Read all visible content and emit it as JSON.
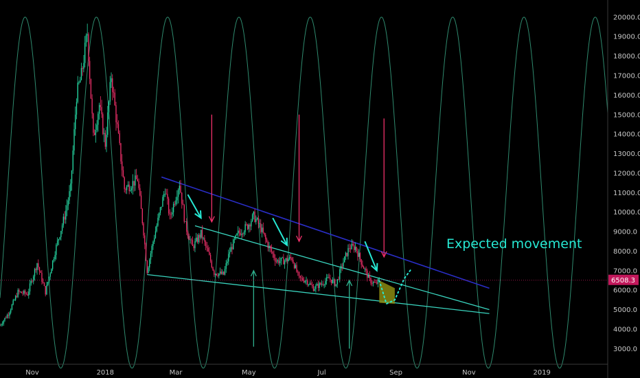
{
  "chart_data": {
    "type": "candlestick",
    "symbol_price_label": "6508.3",
    "current_price": 6508.3,
    "y_range": [
      2200,
      20700
    ],
    "x_range": [
      "2017-10-05",
      "2019-02-25"
    ],
    "y_ticks": [
      3000,
      4000,
      5000,
      6000,
      7000,
      8000,
      9000,
      10000,
      11000,
      12000,
      13000,
      14000,
      15000,
      16000,
      17000,
      18000,
      19000,
      20000
    ],
    "y_tick_labels": [
      "3000.0",
      "4000.0",
      "5000.0",
      "6000.0",
      "7000.0",
      "8000.0",
      "9000.0",
      "10000.0",
      "11000.0",
      "12000.0",
      "13000.0",
      "14000.0",
      "15000.0",
      "16000.0",
      "17000.0",
      "18000.0",
      "19000.0",
      "20000.0"
    ],
    "x_ticks": [
      {
        "date": "2017-11-01",
        "label": "Nov"
      },
      {
        "date": "2018-01-01",
        "label": "2018"
      },
      {
        "date": "2018-03-01",
        "label": "Mar"
      },
      {
        "date": "2018-05-01",
        "label": "May"
      },
      {
        "date": "2018-07-01",
        "label": "Jul"
      },
      {
        "date": "2018-09-01",
        "label": "Sep"
      },
      {
        "date": "2018-11-01",
        "label": "Nov"
      },
      {
        "date": "2019-01-01",
        "label": "2019"
      }
    ],
    "price_path": [
      [
        "2017-10-05",
        4200
      ],
      [
        "2017-10-12",
        4800
      ],
      [
        "2017-10-20",
        5900
      ],
      [
        "2017-10-28",
        5800
      ],
      [
        "2017-11-05",
        7400
      ],
      [
        "2017-11-12",
        5900
      ],
      [
        "2017-11-20",
        8000
      ],
      [
        "2017-11-28",
        9800
      ],
      [
        "2017-12-03",
        11200
      ],
      [
        "2017-12-08",
        16000
      ],
      [
        "2017-12-12",
        17000
      ],
      [
        "2017-12-17",
        19200
      ],
      [
        "2017-12-22",
        13800
      ],
      [
        "2017-12-27",
        15500
      ],
      [
        "2018-01-01",
        13500
      ],
      [
        "2018-01-06",
        17000
      ],
      [
        "2018-01-12",
        13800
      ],
      [
        "2018-01-17",
        11200
      ],
      [
        "2018-01-22",
        11400
      ],
      [
        "2018-01-28",
        11700
      ],
      [
        "2018-02-02",
        9000
      ],
      [
        "2018-02-05",
        7000
      ],
      [
        "2018-02-10",
        8500
      ],
      [
        "2018-02-20",
        11200
      ],
      [
        "2018-02-24",
        9700
      ],
      [
        "2018-03-04",
        11500
      ],
      [
        "2018-03-09",
        9300
      ],
      [
        "2018-03-15",
        8200
      ],
      [
        "2018-03-22",
        8900
      ],
      [
        "2018-03-28",
        7900
      ],
      [
        "2018-04-02",
        6900
      ],
      [
        "2018-04-10",
        6800
      ],
      [
        "2018-04-15",
        8000
      ],
      [
        "2018-04-22",
        8900
      ],
      [
        "2018-04-30",
        9300
      ],
      [
        "2018-05-05",
        9800
      ],
      [
        "2018-05-10",
        9300
      ],
      [
        "2018-05-17",
        8300
      ],
      [
        "2018-05-24",
        7500
      ],
      [
        "2018-05-30",
        7500
      ],
      [
        "2018-06-06",
        7650
      ],
      [
        "2018-06-12",
        6600
      ],
      [
        "2018-06-18",
        6500
      ],
      [
        "2018-06-24",
        6100
      ],
      [
        "2018-06-30",
        6300
      ],
      [
        "2018-07-07",
        6600
      ],
      [
        "2018-07-13",
        6300
      ],
      [
        "2018-07-18",
        7300
      ],
      [
        "2018-07-24",
        8200
      ],
      [
        "2018-07-29",
        8200
      ],
      [
        "2018-08-04",
        7300
      ],
      [
        "2018-08-10",
        6500
      ],
      [
        "2018-08-15",
        6300
      ],
      [
        "2018-08-18",
        6500
      ]
    ],
    "projection_path": [
      [
        "2018-08-18",
        6500
      ],
      [
        "2018-08-24",
        5300
      ],
      [
        "2018-08-31",
        5500
      ],
      [
        "2018-09-08",
        6600
      ],
      [
        "2018-09-14",
        7100
      ]
    ],
    "trendlines": [
      {
        "role": "upper-resistance",
        "color": "#2a2ec8",
        "from": [
          "2018-02-17",
          11800
        ],
        "to": [
          "2018-11-18",
          6100
        ]
      },
      {
        "role": "inner-resistance",
        "color": "#3ad6c0",
        "from": [
          "2018-03-17",
          9300
        ],
        "to": [
          "2018-11-18",
          5000
        ]
      },
      {
        "role": "support",
        "color": "#3ad6c0",
        "from": [
          "2018-02-05",
          6800
        ],
        "to": [
          "2018-11-18",
          4800
        ]
      }
    ],
    "annotations": [
      {
        "text": "Expected movement",
        "color": "#27e8d3"
      }
    ],
    "arrows": [
      {
        "kind": "red-down",
        "from": [
          "2018-03-31",
          15000
        ],
        "to": [
          "2018-03-31",
          9500
        ]
      },
      {
        "kind": "red-down",
        "from": [
          "2018-06-12",
          15000
        ],
        "to": [
          "2018-06-12",
          8500
        ]
      },
      {
        "kind": "red-down",
        "from": [
          "2018-08-22",
          14800
        ],
        "to": [
          "2018-08-22",
          7700
        ]
      },
      {
        "kind": "cyan-diag",
        "from": [
          "2018-03-11",
          10900
        ],
        "to": [
          "2018-03-22",
          9700
        ]
      },
      {
        "kind": "cyan-diag",
        "from": [
          "2018-05-21",
          9700
        ],
        "to": [
          "2018-06-02",
          8300
        ]
      },
      {
        "kind": "cyan-diag",
        "from": [
          "2018-08-06",
          8500
        ],
        "to": [
          "2018-08-16",
          7000
        ]
      },
      {
        "kind": "teal-up",
        "from": [
          "2018-05-05",
          3100
        ],
        "to": [
          "2018-05-05",
          7000
        ]
      },
      {
        "kind": "teal-up",
        "from": [
          "2018-07-24",
          3000
        ],
        "to": [
          "2018-07-24",
          6500
        ]
      }
    ],
    "highlight_zone": {
      "color": "#8b8b12",
      "points": [
        [
          "2018-08-18",
          6500
        ],
        [
          "2018-08-31",
          6100
        ],
        [
          "2018-08-31",
          5300
        ],
        [
          "2018-08-18",
          5350
        ]
      ]
    },
    "cycle": {
      "color": "#2f8a6e",
      "low": 2000,
      "high": 20000,
      "peaks": [
        "2017-10-26",
        "2017-12-24",
        "2018-02-21",
        "2018-04-22",
        "2018-06-20",
        "2018-08-19",
        "2018-10-17",
        "2018-12-17"
      ],
      "half_period_days": 30
    },
    "current_price_line": {
      "color": "#c2185b"
    },
    "colors": {
      "up": "#26d9a4",
      "down": "#f0306a"
    }
  }
}
